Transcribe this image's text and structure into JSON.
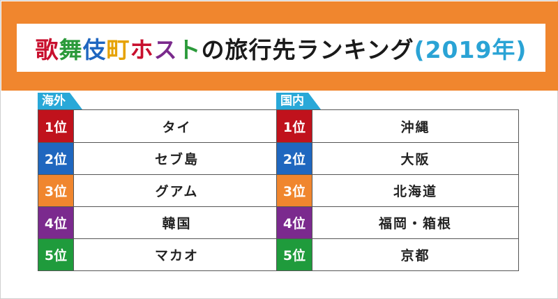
{
  "title": {
    "segments": [
      {
        "text": "歌",
        "color": "#c8102e"
      },
      {
        "text": "舞",
        "color": "#2b9a3a"
      },
      {
        "text": "伎",
        "color": "#1f66c0"
      },
      {
        "text": "町",
        "color": "#e6a200"
      },
      {
        "text": "ホ",
        "color": "#c8102e"
      },
      {
        "text": "ス",
        "color": "#7a2a8c"
      },
      {
        "text": "ト",
        "color": "#2b9a3a"
      },
      {
        "text": "の旅行先ランキング",
        "color": "#1a1a1a"
      },
      {
        "text": "(2019年)",
        "color": "#2aa3d5"
      }
    ]
  },
  "colors": {
    "banner": "#f0862e",
    "tab": "#29a8d8",
    "rank1": "#c0121c",
    "rank2": "#1f67bf",
    "rank3": "#f0862e",
    "rank4": "#7b2a8e",
    "rank5": "#1f9b3c"
  },
  "overseas": {
    "label": "海外",
    "rows": [
      {
        "rank": "1位",
        "name": "タイ"
      },
      {
        "rank": "2位",
        "name": "セブ島"
      },
      {
        "rank": "3位",
        "name": "グアム"
      },
      {
        "rank": "4位",
        "name": "韓国"
      },
      {
        "rank": "5位",
        "name": "マカオ"
      }
    ]
  },
  "domestic": {
    "label": "国内",
    "rows": [
      {
        "rank": "1位",
        "name": "沖縄"
      },
      {
        "rank": "2位",
        "name": "大阪"
      },
      {
        "rank": "3位",
        "name": "北海道"
      },
      {
        "rank": "4位",
        "name": "福岡・箱根"
      },
      {
        "rank": "5位",
        "name": "京都"
      }
    ]
  }
}
